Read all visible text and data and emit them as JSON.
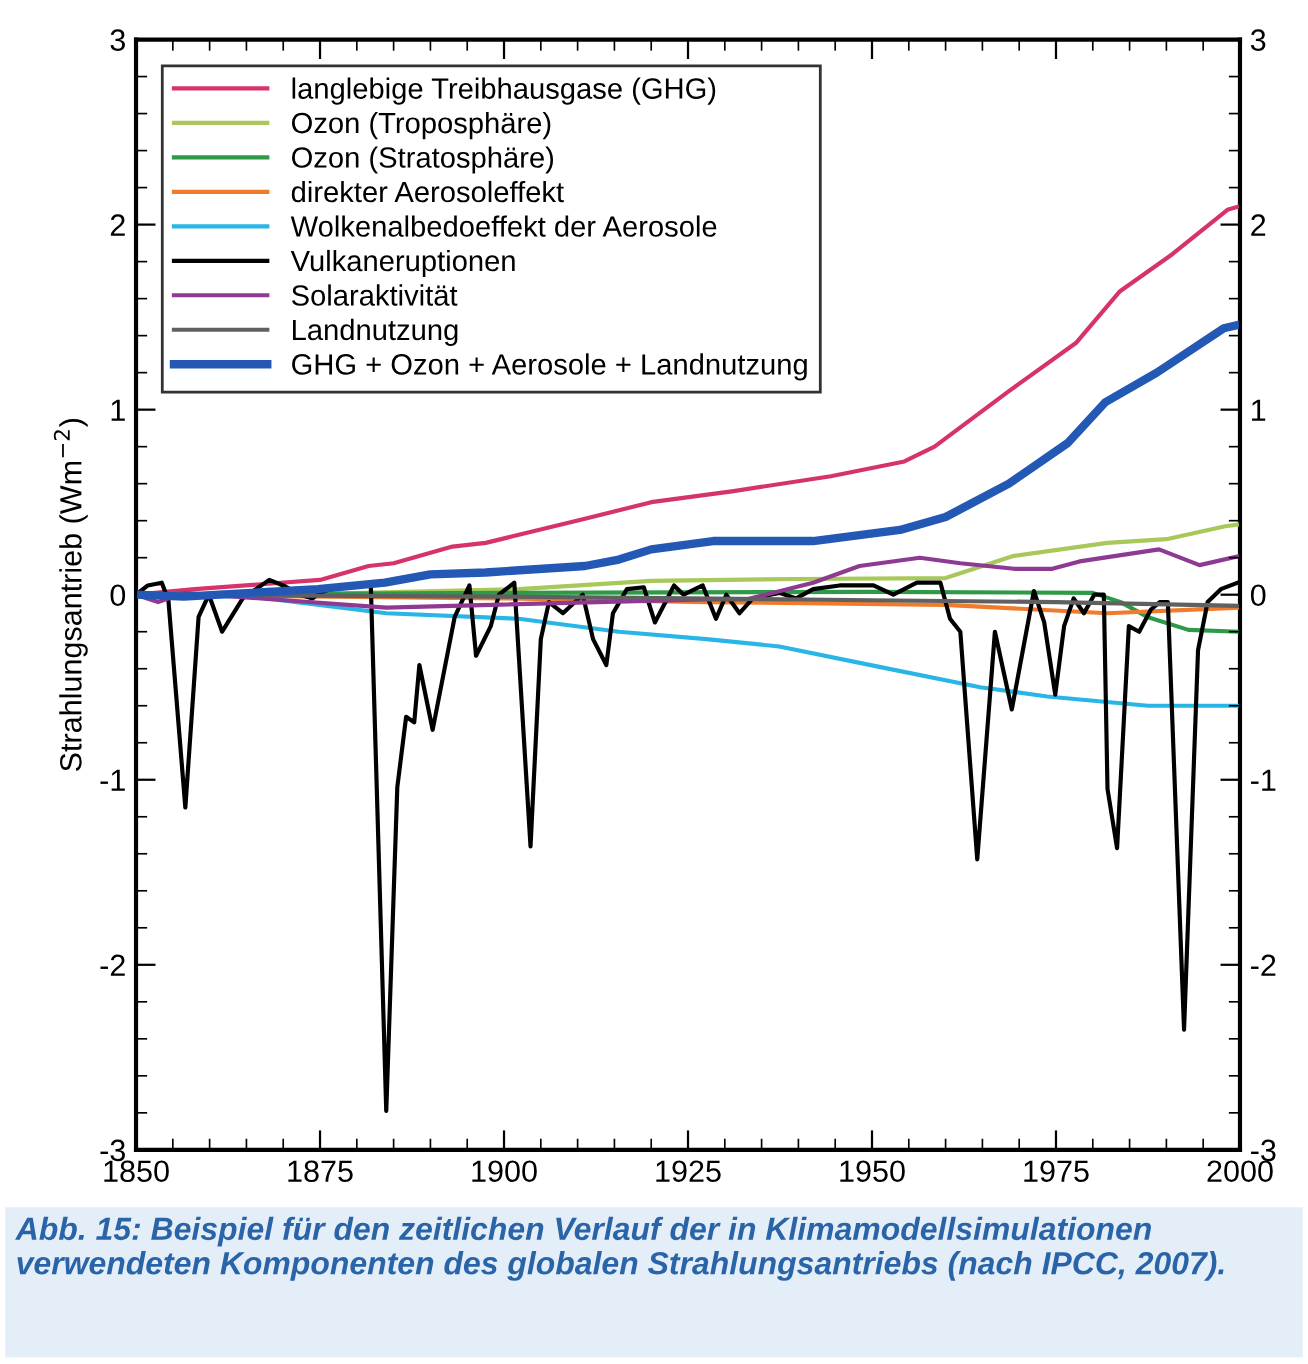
{
  "chart_data": {
    "type": "line",
    "ylabel": "Strahlungsantrieb (Wm$^{−2}$)",
    "xlim": [
      1850,
      2000
    ],
    "xticks": [
      1850,
      1875,
      1900,
      1925,
      1950,
      1975,
      2000
    ],
    "ylim": [
      -3,
      3
    ],
    "yticks": [
      -3,
      -2,
      -1,
      0,
      1,
      2,
      3
    ],
    "y2lim": [
      -3,
      3
    ],
    "y2ticks": [
      -3,
      -2,
      -1,
      0,
      1,
      2,
      3
    ],
    "grid": false,
    "legend": "top left",
    "marker": "none",
    "line_style": "solid",
    "annotations": [
      "Abb. 15: Beispiel für den zeitlichen Verlauf der in Klimamodellsimulationen verwendeten Komponenten des globalen Strahlungsantriebs (nach IPCC, 2007)."
    ],
    "series": [
      {
        "name": "langlebige Treibhausgase (GHG)",
        "color": "#d6336c",
        "x": [
          1850,
          1858,
          1875,
          1881.6,
          1885,
          1893,
          1897.5,
          1911,
          1920,
          1931.2,
          1944.4,
          1954.4,
          1958.5,
          1968.6,
          1977.7,
          1983.7,
          1990.8,
          1998.3,
          2000
        ],
        "values": [
          0,
          0.03,
          0.08,
          0.155,
          0.17,
          0.26,
          0.28,
          0.41,
          0.5,
          0.56,
          0.64,
          0.72,
          0.8,
          1.1,
          1.36,
          1.64,
          1.84,
          2.08,
          2.1
        ]
      },
      {
        "name": "Ozon (Troposphäre)",
        "color": "#a8c85a",
        "x": [
          1850,
          1875,
          1902,
          1920,
          1940,
          1960,
          1969.3,
          1982,
          1990,
          1998,
          2000
        ],
        "values": [
          0,
          0.005,
          0.03,
          0.075,
          0.085,
          0.09,
          0.21,
          0.28,
          0.3,
          0.37,
          0.38
        ]
      },
      {
        "name": "Ozon (Stratosphäre)",
        "color": "#2e9a48",
        "x": [
          1850,
          1900,
          1950,
          1980,
          1983.8,
          1987.4,
          1993,
          2000
        ],
        "values": [
          0,
          0.01,
          0.015,
          0.01,
          -0.04,
          -0.12,
          -0.19,
          -0.2
        ]
      },
      {
        "name": "direkter Aerosoleffekt",
        "color": "#f07b2a",
        "x": [
          1850,
          1900,
          1927.5,
          1960,
          1982,
          2000
        ],
        "values": [
          0,
          -0.02,
          -0.04,
          -0.055,
          -0.1,
          -0.07
        ]
      },
      {
        "name": "Wolkenalbedoeffekt der Aerosole",
        "color": "#29b6e6",
        "x": [
          1850,
          1865.6,
          1884,
          1902,
          1915.6,
          1927.5,
          1937.4,
          1951,
          1964.7,
          1973.8,
          1987.5,
          2000
        ],
        "values": [
          0,
          -0.01,
          -0.1,
          -0.13,
          -0.2,
          -0.24,
          -0.28,
          -0.39,
          -0.5,
          -0.55,
          -0.6,
          -0.6
        ]
      },
      {
        "name": "Vulkaneruptionen",
        "color": "#000000",
        "x": [
          1850,
          1851.6,
          1853.5,
          1854.4,
          1856.7,
          1858.5,
          1859.9,
          1861.7,
          1864.5,
          1868.1,
          1870,
          1872.3,
          1874,
          1875,
          1877.7,
          1881.9,
          1884,
          1885.5,
          1886.7,
          1887.8,
          1888.5,
          1890.3,
          1893.3,
          1895.3,
          1896.2,
          1898.2,
          1899.3,
          1901.4,
          1903.6,
          1905,
          1906.1,
          1908,
          1910.7,
          1912.1,
          1913.9,
          1914.8,
          1916.7,
          1919,
          1920.5,
          1923.1,
          1924.4,
          1927,
          1928.8,
          1930.2,
          1932,
          1933.8,
          1937.4,
          1939.7,
          1942,
          1945.6,
          1950.2,
          1952.9,
          1956.1,
          1959.3,
          1960.6,
          1962,
          1964.3,
          1966.7,
          1969,
          1972,
          1973.4,
          1974.9,
          1976.1,
          1977.4,
          1978.8,
          1980.2,
          1981.5,
          1982,
          1983.3,
          1984.9,
          1986.3,
          1987.9,
          1989.1,
          1990.2,
          1992.4,
          1994.3,
          1995.6,
          1997.4,
          1999.7
        ],
        "values": [
          0,
          0.05,
          0.065,
          -0.03,
          -1.15,
          -0.12,
          0,
          -0.2,
          -0.02,
          0.08,
          0.05,
          0,
          -0.02,
          0.01,
          0.05,
          0.05,
          -2.79,
          -1.04,
          -0.66,
          -0.69,
          -0.38,
          -0.73,
          -0.12,
          0.05,
          -0.33,
          -0.17,
          0,
          0.065,
          -1.36,
          -0.24,
          -0.04,
          -0.1,
          0,
          -0.24,
          -0.38,
          -0.1,
          0.03,
          0.04,
          -0.15,
          0.05,
          0,
          0.05,
          -0.13,
          0,
          -0.1,
          -0.02,
          0.01,
          -0.02,
          0.03,
          0.05,
          0.05,
          0,
          0.065,
          0.065,
          -0.13,
          -0.2,
          -1.43,
          -0.2,
          -0.62,
          0.02,
          -0.15,
          -0.54,
          -0.17,
          -0.02,
          -0.1,
          0,
          0,
          -1.05,
          -1.37,
          -0.17,
          -0.2,
          -0.08,
          -0.04,
          -0.04,
          -2.35,
          -0.3,
          -0.04,
          0.03,
          0.065
        ]
      },
      {
        "name": "Solaraktivität",
        "color": "#8e3a92",
        "x": [
          1850,
          1853,
          1856.5,
          1884,
          1893,
          1927.5,
          1933,
          1942,
          1948.3,
          1956.5,
          1962,
          1969.3,
          1974.5,
          1978.2,
          1989,
          1994.5,
          2000
        ],
        "values": [
          0,
          -0.04,
          0.01,
          -0.07,
          -0.06,
          -0.025,
          -0.025,
          0.065,
          0.155,
          0.2,
          0.17,
          0.14,
          0.14,
          0.18,
          0.245,
          0.16,
          0.21
        ]
      },
      {
        "name": "Landnutzung",
        "color": "#606060",
        "x": [
          1850,
          1900,
          1925,
          1950,
          1975,
          2000
        ],
        "values": [
          0,
          -0.01,
          -0.02,
          -0.03,
          -0.04,
          -0.06
        ]
      },
      {
        "name": "GHG + Ozon + Aerosole + Landnutzung",
        "color": "#2458b5",
        "x": [
          1850,
          1856.5,
          1865.6,
          1874.7,
          1883.8,
          1890,
          1897.5,
          1911,
          1915.6,
          1920,
          1928.4,
          1942,
          1953.8,
          1960,
          1968.6,
          1976.6,
          1981.7,
          1988.7,
          1997.8,
          2000
        ],
        "values": [
          0,
          -0.01,
          0.01,
          0.03,
          0.065,
          0.11,
          0.12,
          0.155,
          0.19,
          0.245,
          0.29,
          0.29,
          0.35,
          0.42,
          0.6,
          0.82,
          1.04,
          1.2,
          1.44,
          1.46
        ]
      }
    ]
  }
}
